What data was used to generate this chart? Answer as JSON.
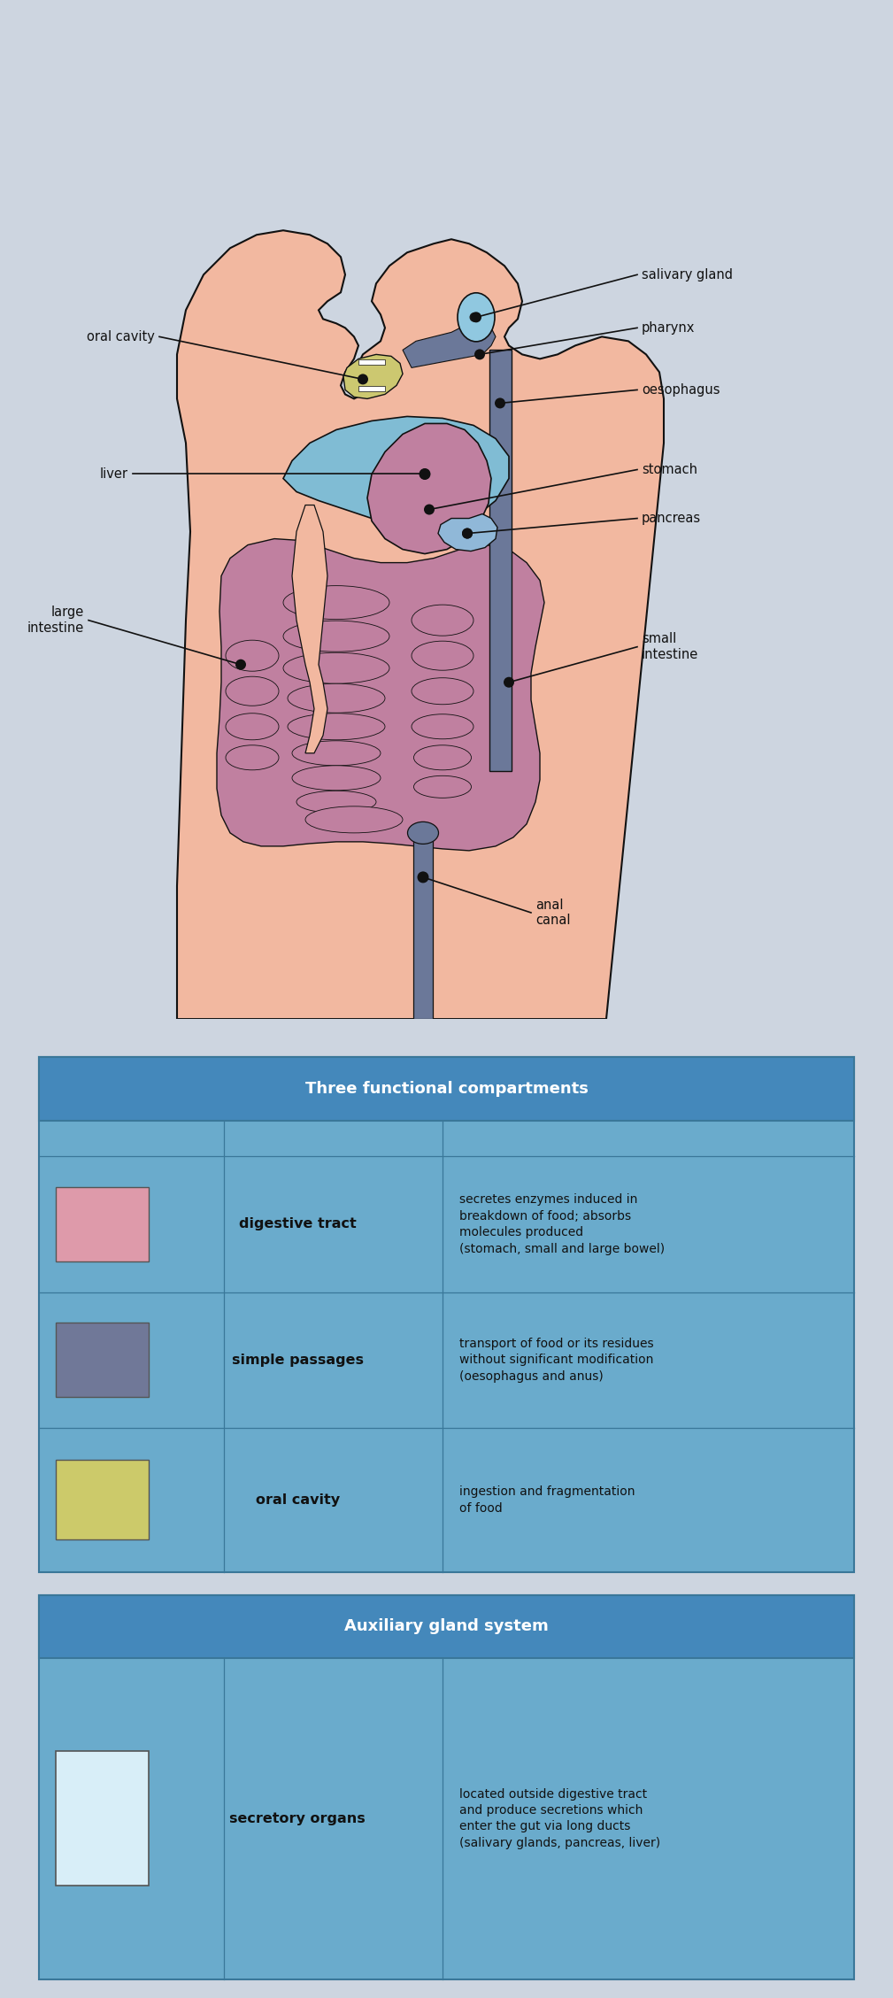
{
  "bg_color": "#cdd5e0",
  "body_skin_color": "#f2b8a0",
  "body_outline_color": "#111111",
  "esophagus_color": "#6b7899",
  "oral_cavity_color": "#ccc870",
  "salivary_gland_color": "#90c8e0",
  "intestine_color": "#c080a0",
  "liver_color": "#80bcd4",
  "pancreas_color": "#90b8d8",
  "stomach_color": "#c080a0",
  "anal_canal_color": "#6b7899",
  "table_header_bg": "#4488bb",
  "table_cell_bg": "#6aabcc",
  "table_outer_bg": "#6aabcc",
  "section1_title": "Three functional compartments",
  "section2_title": "Auxiliary gland system",
  "row1_color": "#ccca6a",
  "row2_color": "#707898",
  "row3_color": "#de9aaa",
  "row4_color": "#d8eef8",
  "row1_label": "oral cavity",
  "row2_label": "simple passages",
  "row3_label": "digestive tract",
  "row4_label": "secretory organs",
  "row1_desc": "ingestion and fragmentation\nof food",
  "row2_desc": "transport of food or its residues\nwithout significant modification\n(oesophagus and anus)",
  "row3_desc": "secretes enzymes induced in\nbreakdown of food; absorbs\nmolecules produced\n(stomach, small and large bowel)",
  "row4_desc": "located outside digestive tract\nand produce secretions which\nenter the gut via long ducts\n(salivary glands, pancreas, liver)",
  "label_oral_cavity": "oral cavity",
  "label_salivary_gland": "salivary gland",
  "label_pharynx": "pharynx",
  "label_oesophagus": "oesophagus",
  "label_stomach": "stomach",
  "label_liver": "liver",
  "label_pancreas": "pancreas",
  "label_large_intestine": "large\nintestine",
  "label_small_intestine": "small\nintestine",
  "label_anal_canal": "anal\ncanal"
}
